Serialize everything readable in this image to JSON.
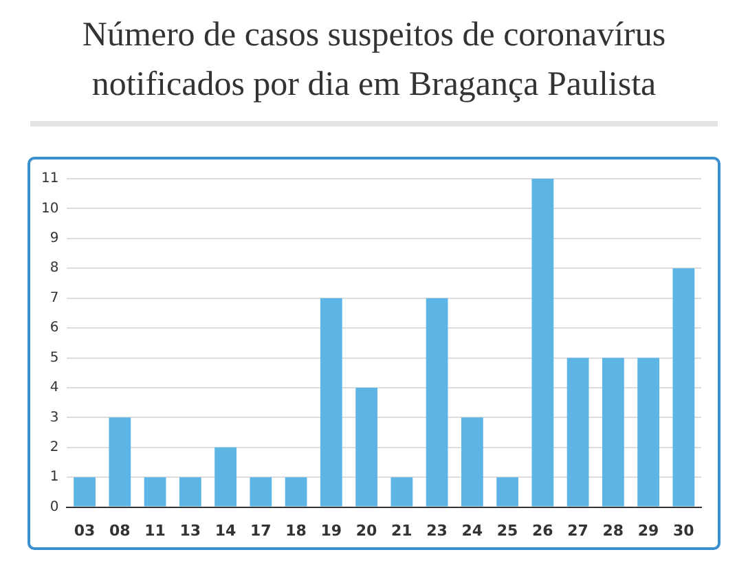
{
  "chart_data": {
    "type": "bar",
    "title": "Número de casos suspeitos de coronavírus notificados por dia em Bragança Paulista",
    "categories": [
      "03",
      "08",
      "11",
      "13",
      "14",
      "17",
      "18",
      "19",
      "20",
      "21",
      "23",
      "24",
      "25",
      "26",
      "27",
      "28",
      "29",
      "30"
    ],
    "values": [
      1,
      3,
      1,
      1,
      2,
      1,
      1,
      7,
      4,
      1,
      7,
      3,
      1,
      11,
      5,
      5,
      5,
      8
    ],
    "color": "#5db5e6",
    "ylim": [
      0,
      11
    ],
    "yticks": [
      0,
      1,
      2,
      3,
      4,
      5,
      6,
      7,
      8,
      9,
      10,
      11
    ],
    "grid": "y",
    "legend": false
  }
}
